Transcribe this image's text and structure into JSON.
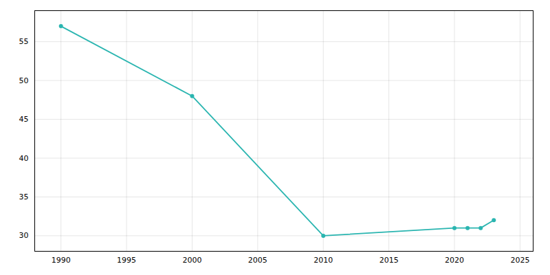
{
  "chart_data": {
    "type": "line",
    "x": [
      1990,
      2000,
      2010,
      2020,
      2021,
      2022,
      2023
    ],
    "values": [
      57,
      48,
      30,
      31,
      31,
      31,
      32
    ],
    "color": "#2ab5b0",
    "marker": "circle",
    "xlim": [
      1988,
      2026
    ],
    "ylim": [
      28,
      59
    ],
    "xticks": [
      1990,
      1995,
      2000,
      2005,
      2010,
      2015,
      2020,
      2025
    ],
    "yticks": [
      30,
      35,
      40,
      45,
      50,
      55
    ],
    "grid": true
  }
}
